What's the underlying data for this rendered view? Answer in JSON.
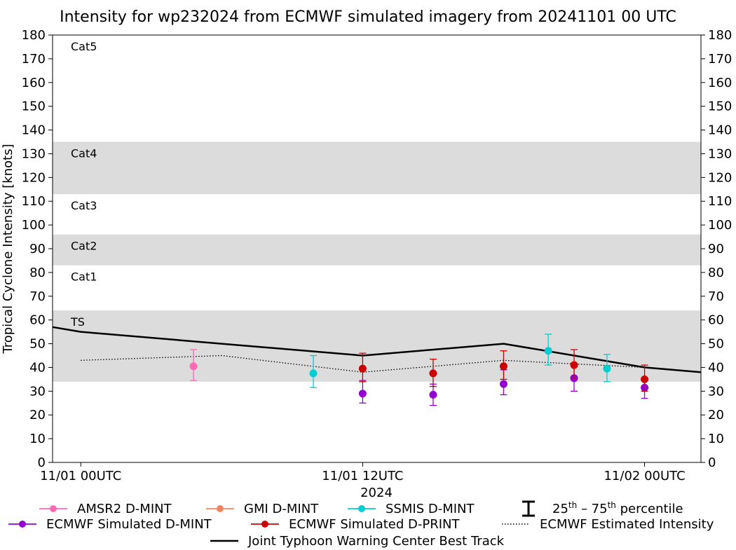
{
  "chart_data": {
    "type": "line",
    "title": "Intensity for wp232024 from ECMWF simulated imagery from 20241101 00 UTC",
    "xlabel": "2024",
    "ylabel": "Tropical Cyclone Intensity [knots]",
    "x_unit": "hours after 11/01 00UTC",
    "xlim": [
      -1.2,
      26.4
    ],
    "ylim": [
      0,
      180
    ],
    "y_ticks": [
      0,
      10,
      20,
      30,
      40,
      50,
      60,
      70,
      80,
      90,
      100,
      110,
      120,
      130,
      140,
      150,
      160,
      170,
      180
    ],
    "x_ticks": [
      {
        "x": 0,
        "label": "11/01 00UTC"
      },
      {
        "x": 12,
        "label": "11/01 12UTC"
      },
      {
        "x": 24,
        "label": "11/02 00UTC"
      }
    ],
    "grid": false,
    "category_bands": [
      {
        "label": "TS",
        "y0": 34,
        "y1": 64,
        "shaded": true
      },
      {
        "label": "Cat1",
        "y0": 64,
        "y1": 83,
        "shaded": false
      },
      {
        "label": "Cat2",
        "y0": 83,
        "y1": 96,
        "shaded": true
      },
      {
        "label": "Cat3",
        "y0": 96,
        "y1": 113,
        "shaded": false
      },
      {
        "label": "Cat4",
        "y0": 113,
        "y1": 135,
        "shaded": true
      },
      {
        "label": "Cat5",
        "y0": 135,
        "y1": 180,
        "shaded": false
      }
    ],
    "band_color": "#dcdcdc",
    "series": [
      {
        "name": "Joint Typhoon Warning Center Best Track",
        "kind": "line",
        "color": "#000000",
        "points": [
          [
            -1.2,
            57
          ],
          [
            0,
            55
          ],
          [
            6,
            50
          ],
          [
            12,
            45
          ],
          [
            18,
            50
          ],
          [
            24,
            40
          ],
          [
            26.4,
            38
          ]
        ]
      },
      {
        "name": "ECMWF Estimated Intensity",
        "kind": "dotted",
        "color": "#000000",
        "points": [
          [
            0,
            43
          ],
          [
            6,
            45
          ],
          [
            12,
            38
          ],
          [
            18,
            43
          ],
          [
            24,
            40
          ]
        ]
      },
      {
        "name": "AMSR2 D-MINT",
        "kind": "points",
        "color": "#ff69b4",
        "points": [
          [
            4.8,
            40.5,
            34.5,
            47.5
          ]
        ]
      },
      {
        "name": "GMI D-MINT",
        "kind": "points",
        "color": "#f4845f",
        "points": []
      },
      {
        "name": "SSMIS D-MINT",
        "kind": "points",
        "color": "#00ced1",
        "points": [
          [
            9.9,
            37.5,
            31.5,
            45
          ],
          [
            19.9,
            47,
            41,
            54
          ],
          [
            22.4,
            39.5,
            34,
            45.5
          ]
        ]
      },
      {
        "name": "ECMWF Simulated D-MINT",
        "kind": "points",
        "color": "#9400d3",
        "points": [
          [
            12,
            29,
            25,
            34.5
          ],
          [
            15,
            28.5,
            24,
            33
          ],
          [
            18,
            33,
            28.5,
            39
          ],
          [
            21,
            35.5,
            30,
            40.5
          ],
          [
            24,
            31.5,
            27,
            35.5
          ]
        ]
      },
      {
        "name": "ECMWF Simulated D-PRINT",
        "kind": "points",
        "color": "#cc0000",
        "points": [
          [
            12,
            39.5,
            34,
            46
          ],
          [
            15,
            37.5,
            32,
            43.5
          ],
          [
            18,
            40.5,
            35,
            47
          ],
          [
            21,
            41,
            35.5,
            47.5
          ],
          [
            24,
            35,
            30,
            41
          ]
        ]
      }
    ],
    "legend": {
      "placement": "bottom",
      "percentile_text": "25th – 75th percentile",
      "entries": [
        {
          "label": "AMSR2 D-MINT",
          "kind": "marker",
          "color": "#ff69b4"
        },
        {
          "label": "GMI D-MINT",
          "kind": "marker",
          "color": "#f4845f"
        },
        {
          "label": "SSMIS D-MINT",
          "kind": "marker",
          "color": "#00ced1"
        },
        {
          "label": "ECMWF Simulated D-MINT",
          "kind": "marker",
          "color": "#9400d3"
        },
        {
          "label": "ECMWF Simulated D-PRINT",
          "kind": "marker",
          "color": "#cc0000"
        },
        {
          "label": "ECMWF Estimated Intensity",
          "kind": "dotted",
          "color": "#000000"
        },
        {
          "label": "Joint Typhoon Warning Center Best Track",
          "kind": "solid",
          "color": "#000000"
        }
      ]
    }
  }
}
